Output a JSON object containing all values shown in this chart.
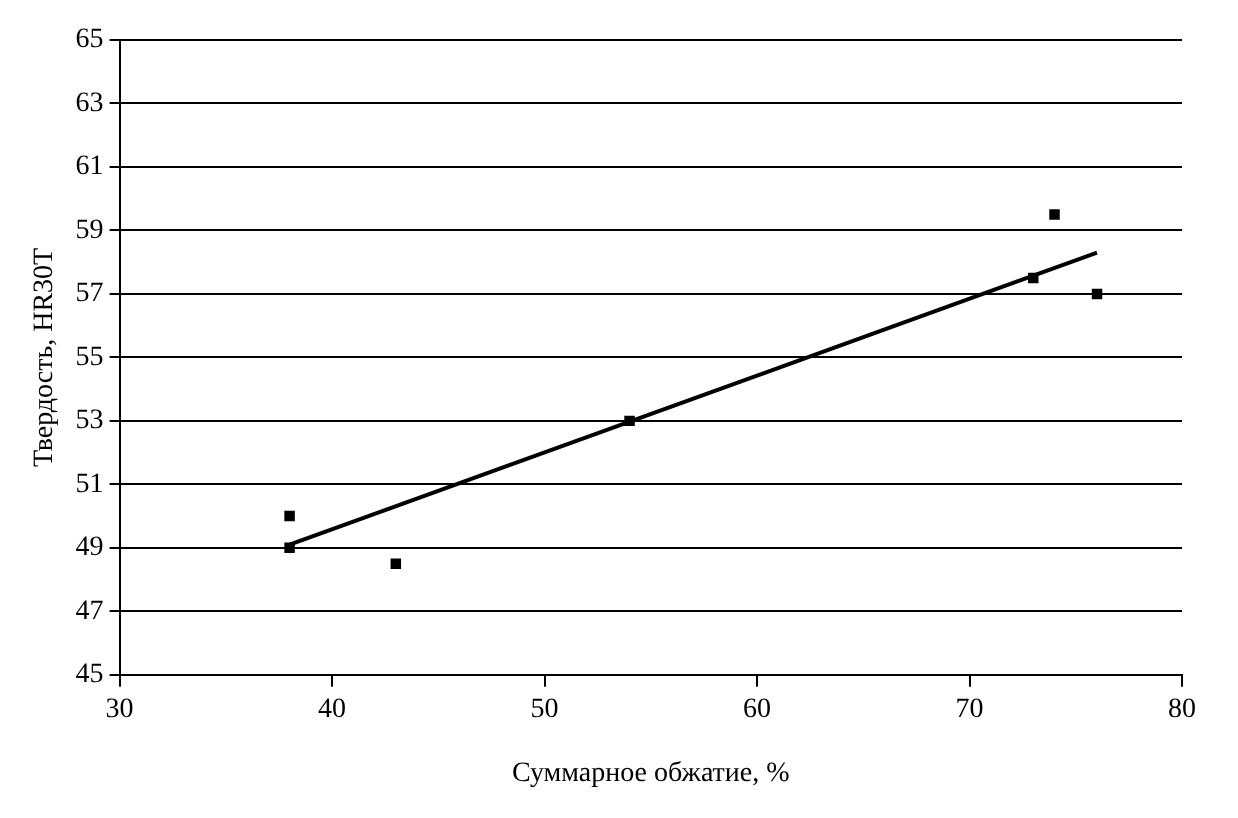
{
  "chart_data": {
    "type": "scatter",
    "xlabel": "Суммарное обжатие, %",
    "ylabel": "Твердость, HR30T",
    "x": [
      38,
      38,
      43,
      54,
      73,
      74,
      76
    ],
    "series": [
      {
        "color": "#000000",
        "values": [
          50,
          49,
          48.5,
          53,
          57.5,
          59.5,
          57
        ],
        "marker": "square"
      },
      {
        "type": "line",
        "color": "#000000",
        "x": [
          38,
          76
        ],
        "values": [
          49.1,
          58.3
        ],
        "marker": "none"
      }
    ],
    "xlim": [
      30,
      80
    ],
    "xticks": [
      30,
      40,
      50,
      60,
      70,
      80
    ],
    "ylim": [
      45,
      65
    ],
    "yticks": [
      45,
      47,
      49,
      51,
      53,
      55,
      57,
      59,
      61,
      63,
      65
    ],
    "grid": "y",
    "legend": false
  }
}
